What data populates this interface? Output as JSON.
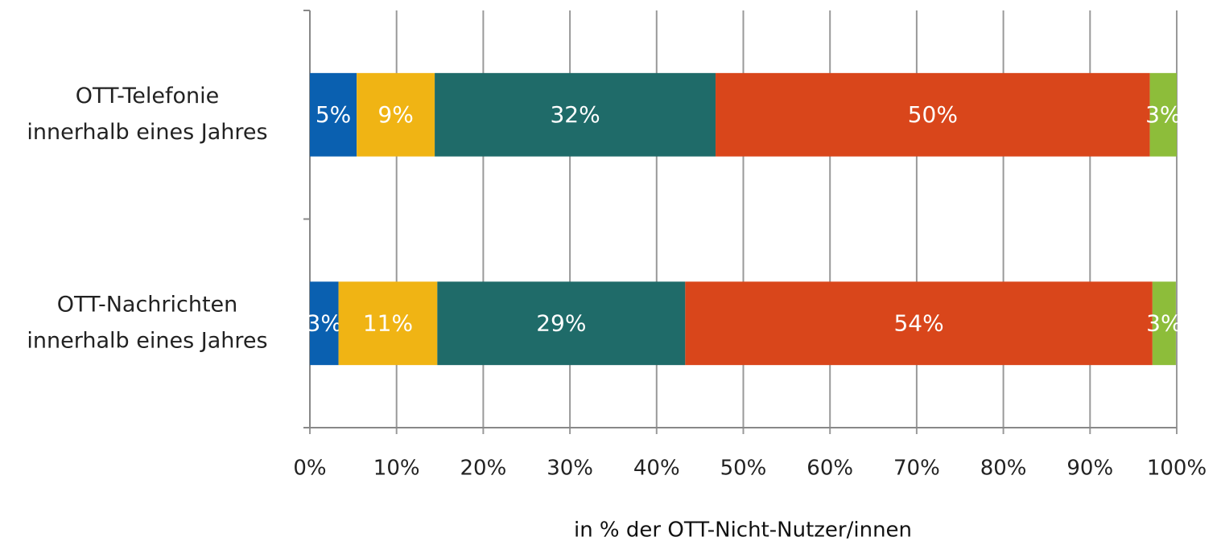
{
  "chart_data": {
    "type": "bar",
    "orientation": "horizontal",
    "stacked": true,
    "categories": [
      [
        "OTT-Telefonie",
        "innerhalb eines Jahres"
      ],
      [
        "OTT-Nachrichten",
        "innerhalb eines Jahres"
      ]
    ],
    "series": [
      {
        "color": "#0a60b0",
        "values": [
          5.4,
          3.3
        ],
        "value_labels": [
          "5%",
          "3%"
        ]
      },
      {
        "color": "#f0b414",
        "values": [
          9.0,
          11.4
        ],
        "value_labels": [
          "9%",
          "11%"
        ]
      },
      {
        "color": "#1f6b69",
        "values": [
          32.4,
          28.6
        ],
        "value_labels": [
          "32%",
          "29%"
        ]
      },
      {
        "color": "#d9461b",
        "values": [
          50.1,
          53.9
        ],
        "value_labels": [
          "50%",
          "54%"
        ]
      },
      {
        "color": "#8dbd3a",
        "values": [
          3.1,
          2.7
        ],
        "value_labels": [
          "3%",
          "3%"
        ]
      }
    ],
    "xlim": [
      0,
      100
    ],
    "xticks": [
      {
        "value": 0,
        "label": "0%"
      },
      {
        "value": 10,
        "label": "10%"
      },
      {
        "value": 20,
        "label": "20%"
      },
      {
        "value": 30,
        "label": "30%"
      },
      {
        "value": 40,
        "label": "40%"
      },
      {
        "value": 50,
        "label": "50%"
      },
      {
        "value": 60,
        "label": "60%"
      },
      {
        "value": 70,
        "label": "70%"
      },
      {
        "value": 80,
        "label": "80%"
      },
      {
        "value": 90,
        "label": "90%"
      },
      {
        "value": 100,
        "label": "100%"
      }
    ],
    "grid": true,
    "xlabel": "in % der OTT-Nicht-Nutzer/innen"
  }
}
